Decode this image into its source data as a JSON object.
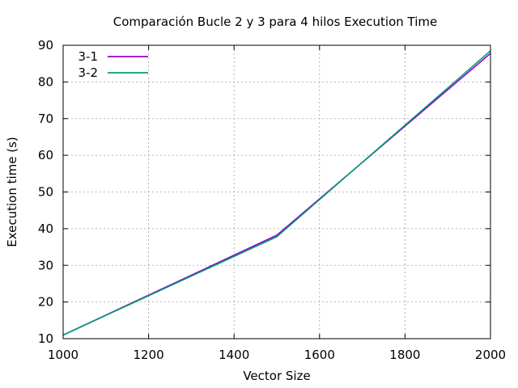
{
  "chart_data": {
    "type": "line",
    "title": "Comparación Bucle 2 y 3 para 4 hilos Execution Time",
    "xlabel": "Vector Size",
    "ylabel": "Execution time (s)",
    "xlim": [
      1000,
      2000
    ],
    "ylim": [
      10,
      90
    ],
    "xticks": [
      1000,
      1200,
      1400,
      1600,
      1800,
      2000
    ],
    "yticks": [
      10,
      20,
      30,
      40,
      50,
      60,
      70,
      80,
      90
    ],
    "grid": true,
    "legend_position": "top-left",
    "series": [
      {
        "name": "3-1",
        "color": "#9400d3",
        "x": [
          1000,
          1500,
          2000
        ],
        "y": [
          11.0,
          38.2,
          87.8
        ]
      },
      {
        "name": "3-2",
        "color": "#009e73",
        "x": [
          1000,
          1500,
          2000
        ],
        "y": [
          11.0,
          37.8,
          88.5
        ]
      }
    ]
  }
}
